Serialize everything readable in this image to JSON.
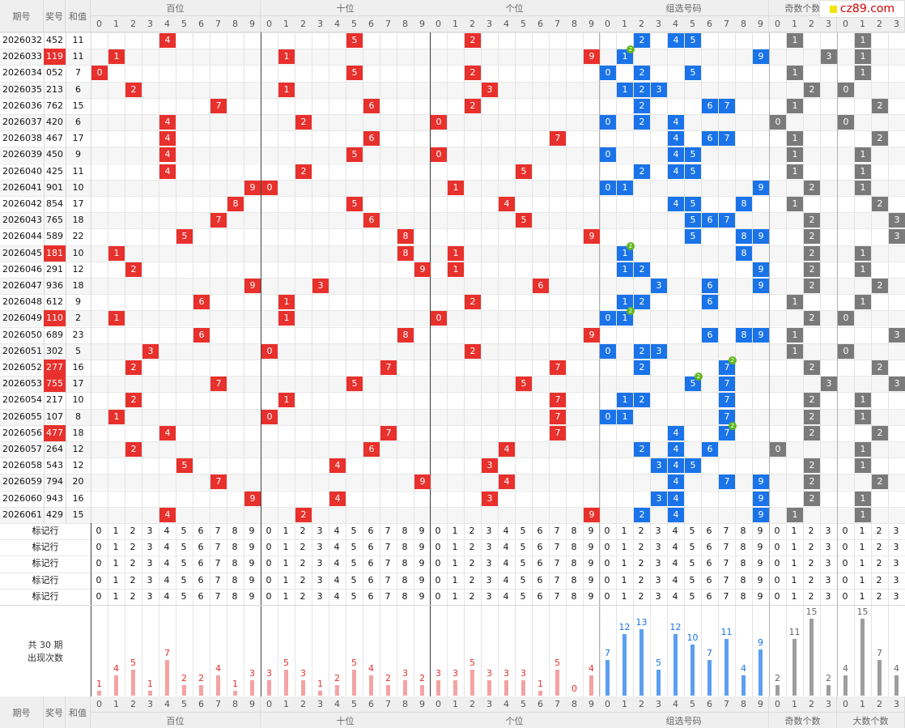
{
  "header": {
    "col_issue": "期号",
    "col_prize": "奖号",
    "col_sum": "和值",
    "groups": [
      "百位",
      "十位",
      "个位",
      "组选号码",
      "奇数个数",
      "大数个数"
    ],
    "group_digits": [
      [
        "0",
        "1",
        "2",
        "3",
        "4",
        "5",
        "6",
        "7",
        "8",
        "9"
      ],
      [
        "0",
        "1",
        "2",
        "3",
        "4",
        "5",
        "6",
        "7",
        "8",
        "9"
      ],
      [
        "0",
        "1",
        "2",
        "3",
        "4",
        "5",
        "6",
        "7",
        "8",
        "9"
      ],
      [
        "0",
        "1",
        "2",
        "3",
        "4",
        "5",
        "6",
        "7",
        "8",
        "9"
      ],
      [
        "0",
        "1",
        "2",
        "3"
      ],
      [
        "0",
        "1",
        "2",
        "3"
      ]
    ]
  },
  "watermark": "cz89.com",
  "colors": {
    "red": "#e8302c",
    "blue": "#1a73e8",
    "gray": "#7a7a7a",
    "bar_red": "#f4a3a3",
    "bar_blue": "#5c9ff0",
    "bar_gray": "#9e9e9e",
    "badge": "#61b81c"
  },
  "rows": [
    {
      "issue": "2026032",
      "prize": "452",
      "sum": "11",
      "dup": null
    },
    {
      "issue": "2026033",
      "prize": "119",
      "sum": "11",
      "dup": 1
    },
    {
      "issue": "2026034",
      "prize": "052",
      "sum": "7",
      "dup": null
    },
    {
      "issue": "2026035",
      "prize": "213",
      "sum": "6",
      "dup": null
    },
    {
      "issue": "2026036",
      "prize": "762",
      "sum": "15",
      "dup": null
    },
    {
      "issue": "2026037",
      "prize": "420",
      "sum": "6",
      "dup": null
    },
    {
      "issue": "2026038",
      "prize": "467",
      "sum": "17",
      "dup": null
    },
    {
      "issue": "2026039",
      "prize": "450",
      "sum": "9",
      "dup": null
    },
    {
      "issue": "2026040",
      "prize": "425",
      "sum": "11",
      "dup": null
    },
    {
      "issue": "2026041",
      "prize": "901",
      "sum": "10",
      "dup": null
    },
    {
      "issue": "2026042",
      "prize": "854",
      "sum": "17",
      "dup": null
    },
    {
      "issue": "2026043",
      "prize": "765",
      "sum": "18",
      "dup": null
    },
    {
      "issue": "2026044",
      "prize": "589",
      "sum": "22",
      "dup": null
    },
    {
      "issue": "2026045",
      "prize": "181",
      "sum": "10",
      "dup": 1
    },
    {
      "issue": "2026046",
      "prize": "291",
      "sum": "12",
      "dup": null
    },
    {
      "issue": "2026047",
      "prize": "936",
      "sum": "18",
      "dup": null
    },
    {
      "issue": "2026048",
      "prize": "612",
      "sum": "9",
      "dup": null
    },
    {
      "issue": "2026049",
      "prize": "110",
      "sum": "2",
      "dup": 1
    },
    {
      "issue": "2026050",
      "prize": "689",
      "sum": "23",
      "dup": null
    },
    {
      "issue": "2026051",
      "prize": "302",
      "sum": "5",
      "dup": null
    },
    {
      "issue": "2026052",
      "prize": "277",
      "sum": "16",
      "dup": 7
    },
    {
      "issue": "2026053",
      "prize": "755",
      "sum": "17",
      "dup": 5
    },
    {
      "issue": "2026054",
      "prize": "217",
      "sum": "10",
      "dup": null
    },
    {
      "issue": "2026055",
      "prize": "107",
      "sum": "8",
      "dup": null
    },
    {
      "issue": "2026056",
      "prize": "477",
      "sum": "18",
      "dup": 7
    },
    {
      "issue": "2026057",
      "prize": "264",
      "sum": "12",
      "dup": null
    },
    {
      "issue": "2026058",
      "prize": "543",
      "sum": "12",
      "dup": null
    },
    {
      "issue": "2026059",
      "prize": "794",
      "sum": "20",
      "dup": null
    },
    {
      "issue": "2026060",
      "prize": "943",
      "sum": "16",
      "dup": null
    },
    {
      "issue": "2026061",
      "prize": "429",
      "sum": "15",
      "dup": null
    }
  ],
  "dup_badge": "2",
  "mark_row_label": "标记行",
  "mark_row_count": 5,
  "stats_title_line1": "共 30 期",
  "stats_title_line2": "出现次数",
  "chart_data": {
    "type": "bar",
    "title": "",
    "groups": [
      {
        "name": "百位",
        "categories": [
          "0",
          "1",
          "2",
          "3",
          "4",
          "5",
          "6",
          "7",
          "8",
          "9"
        ],
        "values": [
          1,
          4,
          5,
          1,
          7,
          2,
          2,
          4,
          1,
          3
        ]
      },
      {
        "name": "十位",
        "categories": [
          "0",
          "1",
          "2",
          "3",
          "4",
          "5",
          "6",
          "7",
          "8",
          "9"
        ],
        "values": [
          3,
          5,
          3,
          1,
          2,
          5,
          4,
          2,
          3,
          2
        ]
      },
      {
        "name": "个位",
        "categories": [
          "0",
          "1",
          "2",
          "3",
          "4",
          "5",
          "6",
          "7",
          "8",
          "9"
        ],
        "values": [
          3,
          3,
          5,
          3,
          3,
          3,
          1,
          5,
          0,
          4
        ]
      },
      {
        "name": "组选号码",
        "categories": [
          "0",
          "1",
          "2",
          "3",
          "4",
          "5",
          "6",
          "7",
          "8",
          "9"
        ],
        "values": [
          7,
          12,
          13,
          5,
          12,
          10,
          7,
          11,
          4,
          9
        ]
      },
      {
        "name": "奇数个数",
        "categories": [
          "0",
          "1",
          "2",
          "3"
        ],
        "values": [
          2,
          11,
          15,
          2
        ]
      },
      {
        "name": "大数个数",
        "categories": [
          "0",
          "1",
          "2",
          "3"
        ],
        "values": [
          4,
          15,
          7,
          4
        ]
      }
    ]
  }
}
